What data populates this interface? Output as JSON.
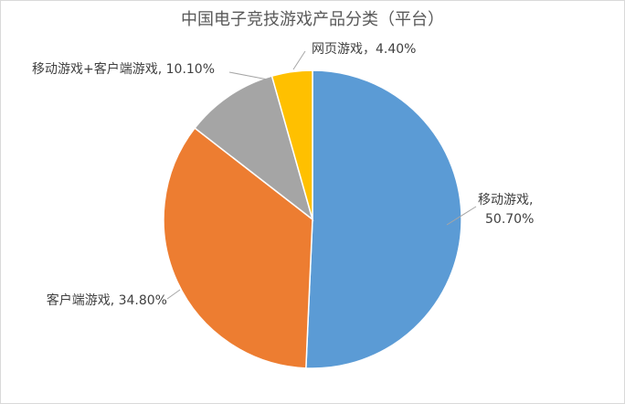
{
  "chart_data": {
    "type": "pie",
    "title": "中国电子竞技游戏产品分类（平台）",
    "categories": [
      "移动游戏",
      "客户端游戏",
      "移动游戏+客户端游戏",
      "网页游戏"
    ],
    "values": [
      50.7,
      34.8,
      10.1,
      4.4
    ],
    "data_labels": [
      "移动游戏, 50.70%",
      "客户端游戏, 34.80%",
      "移动游戏+客户端游戏, 10.10%",
      "网页游戏，4.40%"
    ],
    "start": "12 o'clock",
    "direction": "clockwise",
    "legend": "none",
    "colors": [
      "#5B9BD5",
      "#ED7D31",
      "#A5A5A5",
      "#FFC000"
    ]
  }
}
